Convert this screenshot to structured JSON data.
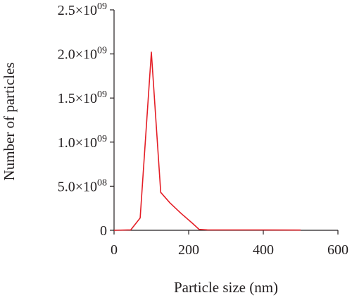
{
  "chart_data": {
    "type": "line",
    "title": "",
    "xlabel": "Particle size (nm)",
    "ylabel": "Number of particles",
    "xlim": [
      0,
      600
    ],
    "ylim": [
      0,
      2500000000
    ],
    "grid": false,
    "x_ticks": [
      {
        "value": 0,
        "label": "0"
      },
      {
        "value": 200,
        "label": "200"
      },
      {
        "value": 400,
        "label": "400"
      },
      {
        "value": 600,
        "label": "600"
      }
    ],
    "y_ticks": [
      {
        "value": 0,
        "label": "0",
        "mantissa": "",
        "exponent": ""
      },
      {
        "value": 500000000,
        "label": "5.0×10^08",
        "mantissa": "5.0×10",
        "exponent": "08"
      },
      {
        "value": 1000000000,
        "label": "1.0×10^09",
        "mantissa": "1.0×10",
        "exponent": "09"
      },
      {
        "value": 1500000000,
        "label": "1.5×10^09",
        "mantissa": "1.5×10",
        "exponent": "09"
      },
      {
        "value": 2000000000,
        "label": "2.0×10^09",
        "mantissa": "2.0×10",
        "exponent": "09"
      },
      {
        "value": 2500000000,
        "label": "2.5×10^09",
        "mantissa": "2.5×10",
        "exponent": "09"
      }
    ],
    "series": [
      {
        "color": "#e41e26",
        "x": [
          0,
          45,
          70,
          100,
          125,
          150,
          180,
          210,
          228,
          250,
          300,
          400,
          500
        ],
        "y": [
          0,
          5000000,
          140000000,
          2020000000,
          430000000,
          310000000,
          190000000,
          80000000,
          10000000,
          5000000,
          4000000,
          4000000,
          2000000
        ]
      }
    ]
  }
}
